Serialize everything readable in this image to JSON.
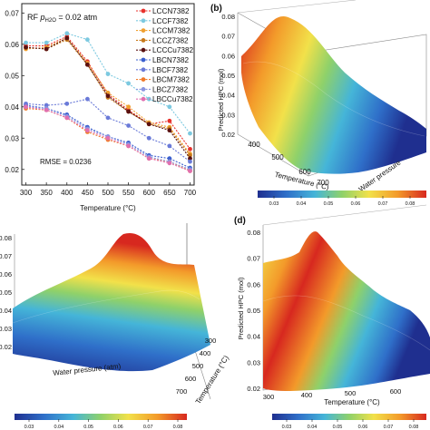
{
  "colors": {
    "axis": "#222222",
    "grid": "#dddddd",
    "cbar_stops": [
      "#1f2f8f",
      "#2f6fc9",
      "#45b5d8",
      "#8fd16a",
      "#f2e14a",
      "#f39a2a",
      "#d7281f"
    ]
  },
  "panel_labels": {
    "b": "(b)",
    "d": "(d)"
  },
  "chart_data": [
    {
      "type": "line",
      "panel": "a",
      "annotation": "RF",
      "annotation_p": "p",
      "annotation_sub": "H2O",
      "annotation_rest": "= 0.02 atm",
      "rmse_text": "RMSE = 0.0236",
      "xlabel": "Temperature (°C)",
      "ylabel": "",
      "x": [
        300,
        350,
        400,
        450,
        500,
        550,
        600,
        650,
        700
      ],
      "xlim": [
        290,
        710
      ],
      "ylim": [
        0.015,
        0.073
      ],
      "yticks": [
        "0.07",
        "0.06",
        "0.05",
        "0.04",
        "0.03",
        "0.02"
      ],
      "ytick_values": [
        0.07,
        0.06,
        0.05,
        0.04,
        0.03,
        0.02
      ],
      "xticks": [
        "300",
        "350",
        "400",
        "450",
        "500",
        "550",
        "600",
        "650",
        "700"
      ],
      "series": [
        {
          "name": "LCCN7382",
          "color": "#e8312c",
          "values": [
            0.0595,
            0.0595,
            0.0625,
            0.0545,
            0.044,
            0.039,
            0.0345,
            0.0355,
            0.0265
          ]
        },
        {
          "name": "LCCF7382",
          "color": "#7cc9e0",
          "values": [
            0.0605,
            0.0605,
            0.0635,
            0.0615,
            0.0505,
            0.0475,
            0.0425,
            0.04,
            0.0315
          ]
        },
        {
          "name": "LCCM7382",
          "color": "#f0a030",
          "values": [
            0.0585,
            0.059,
            0.062,
            0.054,
            0.0445,
            0.04,
            0.035,
            0.0335,
            0.025
          ]
        },
        {
          "name": "LCCZ7382",
          "color": "#c87a1a",
          "values": [
            0.059,
            0.0585,
            0.0615,
            0.0535,
            0.043,
            0.0385,
            0.0345,
            0.033,
            0.0245
          ]
        },
        {
          "name": "LCCCu7382",
          "color": "#5a1010",
          "values": [
            0.059,
            0.0585,
            0.062,
            0.0535,
            0.0435,
            0.0385,
            0.0345,
            0.0325,
            0.0235
          ]
        },
        {
          "name": "LBCN7382",
          "color": "#3a5fcf",
          "values": [
            0.0405,
            0.0395,
            0.0375,
            0.0335,
            0.0305,
            0.0285,
            0.0245,
            0.0235,
            0.0205
          ]
        },
        {
          "name": "LBCF7382",
          "color": "#6a7ad8",
          "values": [
            0.041,
            0.0405,
            0.041,
            0.0425,
            0.0365,
            0.034,
            0.03,
            0.0275,
            0.0225
          ]
        },
        {
          "name": "LBCM7382",
          "color": "#f07a2a",
          "values": [
            0.0395,
            0.039,
            0.0365,
            0.032,
            0.0295,
            0.0275,
            0.0235,
            0.0225,
            0.0195
          ]
        },
        {
          "name": "LBCZ7382",
          "color": "#8a95e0",
          "values": [
            0.04,
            0.0395,
            0.037,
            0.033,
            0.0305,
            0.028,
            0.024,
            0.0225,
            0.02
          ]
        },
        {
          "name": "LBCCu7382",
          "color": "#e06fb0",
          "values": [
            0.04,
            0.039,
            0.0365,
            0.0325,
            0.03,
            0.0275,
            0.0235,
            0.022,
            0.0195
          ]
        }
      ]
    },
    {
      "type": "surface",
      "panel": "b",
      "zlabel": "Predicted HPC (mol)",
      "xlabel": "Temperature (°C)",
      "ylabel": "Water pressure",
      "zticks": [
        "0.08",
        "0.07",
        "0.06",
        "0.05",
        "0.04",
        "0.03",
        "0.02"
      ],
      "xticks": [
        "400",
        "500",
        "600",
        "700"
      ],
      "zlim": [
        0.02,
        0.08
      ],
      "colorbar_ticks": [
        "0.03",
        "0.04",
        "0.05",
        "0.06",
        "0.07",
        "0.08"
      ]
    },
    {
      "type": "surface",
      "panel": "c",
      "zlabel": "",
      "xlabel": "Water pressure (atm)",
      "ylabel": "Temperature (°C)",
      "zticks": [
        "0.08",
        "0.07",
        "0.06",
        "0.05",
        "0.04",
        "0.03",
        "0.02"
      ],
      "yticks": [
        "300",
        "400",
        "500",
        "600",
        "700"
      ],
      "zlim": [
        0.02,
        0.08
      ],
      "colorbar_ticks": [
        "0.03",
        "0.04",
        "0.05",
        "0.06",
        "0.07",
        "0.08"
      ]
    },
    {
      "type": "surface",
      "panel": "d",
      "zlabel": "Predicted HPC (mol)",
      "xlabel": "Temperature (°C)",
      "zticks": [
        "0.08",
        "0.07",
        "0.06",
        "0.05",
        "0.04",
        "0.03",
        "0.02"
      ],
      "xticks": [
        "300",
        "400",
        "500",
        "600"
      ],
      "zlim": [
        0.02,
        0.08
      ],
      "colorbar_ticks": [
        "0.03",
        "0.04",
        "0.05",
        "0.06",
        "0.07",
        "0.08"
      ]
    }
  ]
}
